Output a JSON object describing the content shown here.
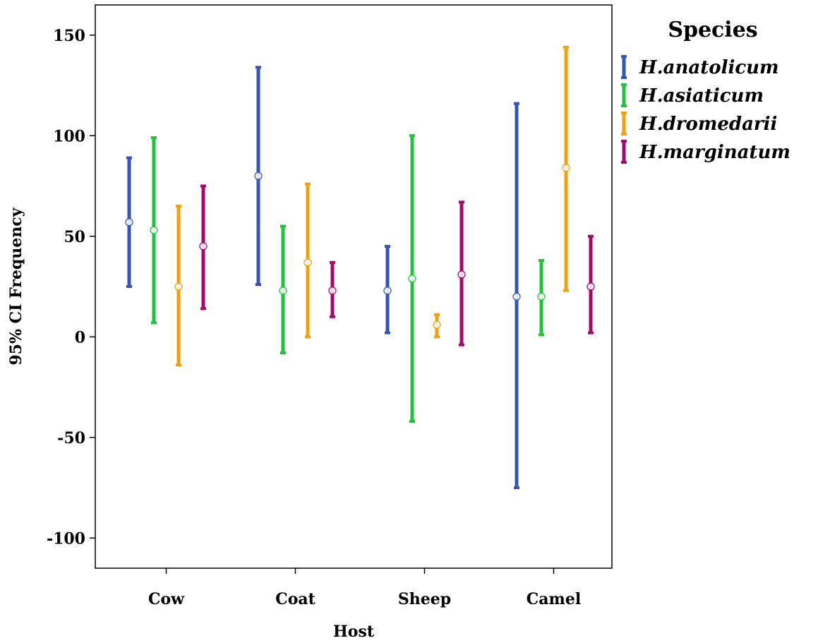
{
  "chart_data": {
    "type": "errorbar",
    "xlabel": "Host",
    "ylabel": "95% CI Frequency",
    "categories": [
      "Cow",
      "Coat",
      "Sheep",
      "Camel"
    ],
    "ylim": [
      -115,
      165
    ],
    "yticks": [
      -100,
      -50,
      0,
      50,
      100,
      150
    ],
    "ytick_labels": [
      "-100",
      "-50",
      "0",
      "50",
      "100",
      "150"
    ],
    "grid": false,
    "legend": {
      "title": "Species",
      "position": "right"
    },
    "series": [
      {
        "name": "H.anatolicum",
        "color": "#3653b8",
        "mean": [
          57,
          80,
          23,
          20
        ],
        "lower": [
          25,
          26,
          2,
          -75
        ],
        "upper": [
          89,
          134,
          45,
          116
        ]
      },
      {
        "name": "H.asiaticum",
        "color": "#1fc23a",
        "mean": [
          53,
          23,
          29,
          20
        ],
        "lower": [
          7,
          -8,
          -42,
          1
        ],
        "upper": [
          99,
          55,
          100,
          38
        ]
      },
      {
        "name": "H.dromedarii",
        "color": "#f5a00a",
        "mean": [
          25,
          37,
          6,
          84
        ],
        "lower": [
          -14,
          0,
          0,
          23
        ],
        "upper": [
          65,
          76,
          11,
          144
        ]
      },
      {
        "name": "H.marginatum",
        "color": "#a5086a",
        "mean": [
          45,
          23,
          31,
          25
        ],
        "lower": [
          14,
          10,
          -4,
          2
        ],
        "upper": [
          75,
          37,
          67,
          50
        ]
      }
    ]
  }
}
